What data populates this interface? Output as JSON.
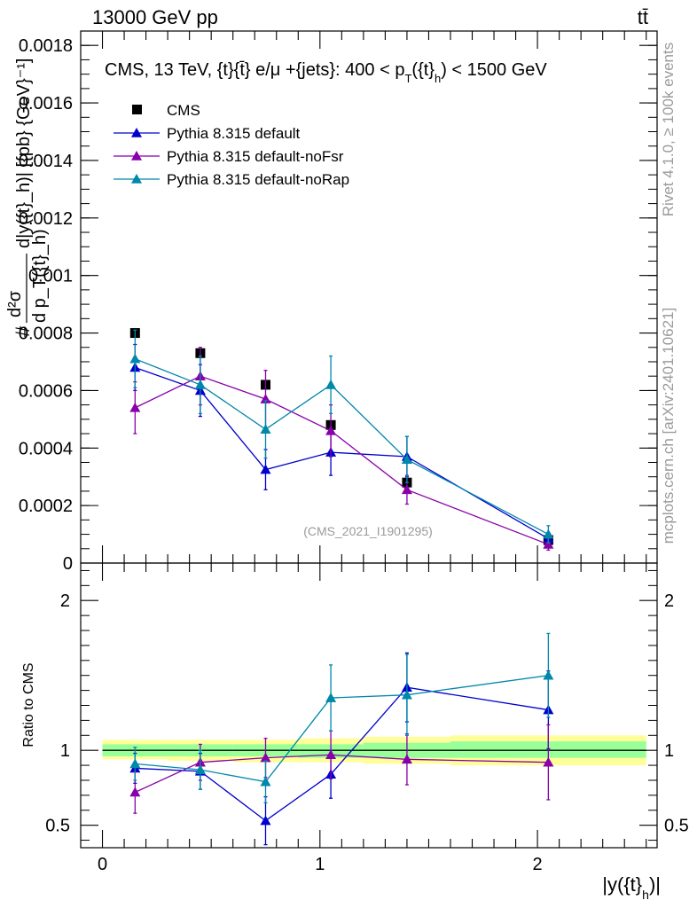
{
  "header": {
    "left": "13000 GeV pp",
    "right": "tt̄"
  },
  "side_text": {
    "top": "Rivet 4.1.0, ≥ 100k events",
    "bottom": "mcplots.cern.ch [arXiv:2401.10621]"
  },
  "colors": {
    "cms": "#000000",
    "default": "#0000cc",
    "noFsr": "#8800aa",
    "noRap": "#0088aa",
    "band_inner": "#99ff99",
    "band_outer": "#ffff99"
  },
  "chart_data": [
    {
      "type": "scatter",
      "title": "CMS, 13 TeV, {t}{t̄} e/μ +{jets}: 400 <  p_T({t}_h) < 1500 GeV",
      "title_parts": {
        "main": "CMS, 13 TeV, {t}{t̄} e/μ +{jets}: 400 <  p",
        "sub1": "T",
        "mid": "({t}",
        "sub2": "h",
        "end": ") < 1500 GeV"
      },
      "ylabel": "# d²σ / d p_T({t}_h) d|y({t}_h)| [{pb} {GeV}⁻¹]",
      "ylabel_parts": {
        "hash": "#",
        "num": "d²σ",
        "den": "d p_T({t}_h)",
        "rest": "d|y({t}_h)| [{pb} {GeV}⁻¹]"
      },
      "xlabel": "",
      "xlim": [
        -0.1,
        2.55
      ],
      "ylim": [
        0,
        0.00185
      ],
      "yticks": [
        0,
        0.0002,
        0.0004,
        0.0006,
        0.0008,
        0.001,
        0.0012,
        0.0014,
        0.0016,
        0.0018
      ],
      "ytick_labels": [
        "0",
        "0.0002",
        "0.0004",
        "0.0006",
        "0.0008",
        "0.001",
        "0.0012",
        "0.0014",
        "0.0016",
        "0.0018"
      ],
      "watermark": "(CMS_2021_I1901295)",
      "legend_position": "top-left",
      "x": [
        0.15,
        0.45,
        0.75,
        1.05,
        1.4,
        2.05
      ],
      "series": [
        {
          "name": "CMS",
          "key": "cms",
          "marker": "square",
          "values": [
            0.0008,
            0.00073,
            0.00062,
            0.00048,
            0.00028,
            8e-05
          ],
          "errors": [
            1e-05,
            1e-05,
            1e-05,
            1e-05,
            1e-05,
            5e-06
          ]
        },
        {
          "name": "Pythia 8.315 default",
          "key": "default",
          "marker": "triangle",
          "values": [
            0.00068,
            0.0006,
            0.000325,
            0.000385,
            0.00037,
            8.5e-05
          ],
          "errors": [
            8e-05,
            9e-05,
            7e-05,
            8e-05,
            7e-05,
            2e-05
          ]
        },
        {
          "name": "Pythia 8.315 default-noFsr",
          "key": "noFsr",
          "marker": "triangle",
          "values": [
            0.00054,
            0.00065,
            0.00057,
            0.00046,
            0.000255,
            6.5e-05
          ],
          "errors": [
            9e-05,
            0.0001,
            0.0001,
            9e-05,
            5e-05,
            2e-05
          ]
        },
        {
          "name": "Pythia 8.315 default-noRap",
          "key": "noRap",
          "marker": "triangle",
          "values": [
            0.00071,
            0.00062,
            0.000465,
            0.00062,
            0.00036,
            0.0001
          ],
          "errors": [
            0.0001,
            0.0001,
            0.0001,
            0.0001,
            8e-05,
            3e-05
          ]
        }
      ]
    },
    {
      "type": "scatter",
      "title": "",
      "xlabel": "|y({t}_h)|",
      "xlabel_parts": {
        "main": "|y({t}",
        "sub": "h",
        "end": ")|"
      },
      "ylabel": "Ratio to CMS",
      "xlim": [
        -0.1,
        2.55
      ],
      "ylim": [
        0.35,
        2.25
      ],
      "yticks": [
        0.5,
        1,
        2
      ],
      "ytick_labels": [
        "0.5",
        "1",
        "2"
      ],
      "xticks": [
        0,
        1,
        2
      ],
      "xtick_labels": [
        "0",
        "1",
        "2"
      ],
      "x": [
        0.15,
        0.45,
        0.75,
        1.05,
        1.4,
        2.05
      ],
      "bands": [
        {
          "x_edges": [
            0,
            0.3,
            0.6,
            0.9,
            1.2,
            1.6,
            2.5
          ],
          "outer": [
            [
              0.94,
              1.07
            ],
            [
              0.93,
              1.07
            ],
            [
              0.92,
              1.07
            ],
            [
              0.92,
              1.08
            ],
            [
              0.91,
              1.09
            ],
            [
              0.9,
              1.1
            ]
          ],
          "inner": [
            [
              0.96,
              1.04
            ],
            [
              0.96,
              1.04
            ],
            [
              0.96,
              1.04
            ],
            [
              0.95,
              1.04
            ],
            [
              0.95,
              1.05
            ],
            [
              0.95,
              1.06
            ]
          ]
        }
      ],
      "series": [
        {
          "name": "Pythia 8.315 default",
          "key": "default",
          "values": [
            0.88,
            0.86,
            0.53,
            0.84,
            1.42,
            1.27
          ],
          "errors": [
            0.1,
            0.12,
            0.16,
            0.16,
            0.23,
            0.26
          ]
        },
        {
          "name": "Pythia 8.315 default-noFsr",
          "key": "noFsr",
          "values": [
            0.72,
            0.92,
            0.95,
            0.97,
            0.94,
            0.92
          ],
          "errors": [
            0.14,
            0.12,
            0.13,
            0.16,
            0.17,
            0.25
          ]
        },
        {
          "name": "Pythia 8.315 default-noRap",
          "key": "noRap",
          "values": [
            0.91,
            0.87,
            0.79,
            1.35,
            1.37,
            1.5
          ],
          "errors": [
            0.11,
            0.13,
            0.14,
            0.22,
            0.27,
            0.28
          ]
        }
      ]
    }
  ]
}
